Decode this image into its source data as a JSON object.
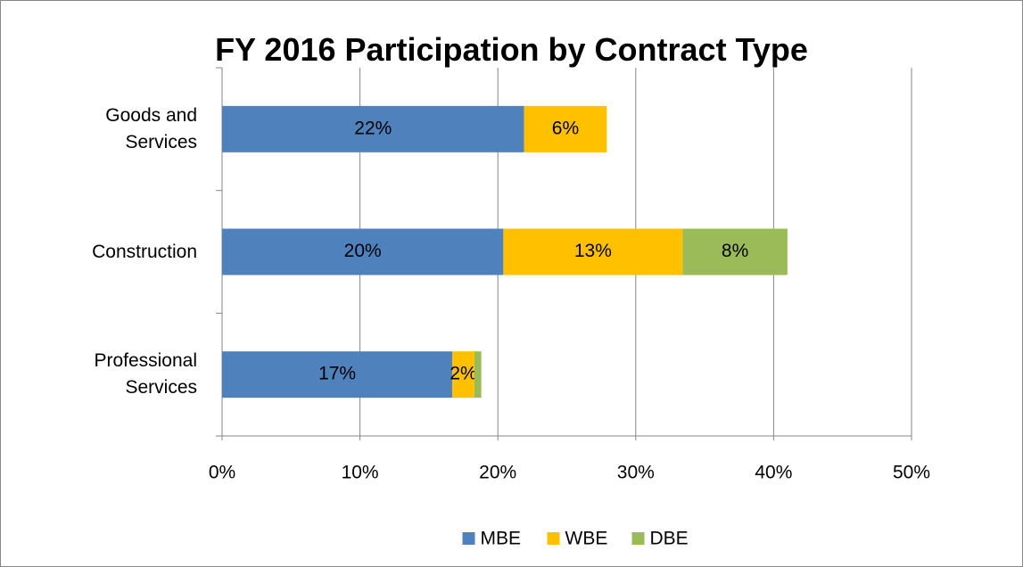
{
  "chart_data": {
    "type": "bar",
    "orientation": "horizontal",
    "stacked": true,
    "title": "FY 2016 Participation by Contract Type",
    "categories": [
      "Goods and Services",
      "Construction",
      "Professional Services"
    ],
    "series": [
      {
        "name": "MBE",
        "color": "#4f81bd",
        "values": [
          21.9,
          20.4,
          16.7
        ],
        "value_labels": [
          "22%",
          "20%",
          "17%"
        ]
      },
      {
        "name": "WBE",
        "color": "#ffc000",
        "values": [
          6.0,
          13.0,
          1.6
        ],
        "value_labels": [
          "6%",
          "13%",
          "2%"
        ]
      },
      {
        "name": "DBE",
        "color": "#9bbb59",
        "values": [
          null,
          7.6,
          0.5
        ],
        "value_labels": [
          null,
          "8%",
          null
        ]
      }
    ],
    "xlim": [
      0,
      50
    ],
    "xticks": [
      {
        "value": 0,
        "label": "0%"
      },
      {
        "value": 10,
        "label": "10%"
      },
      {
        "value": 20,
        "label": "20%"
      },
      {
        "value": 30,
        "label": "30%"
      },
      {
        "value": 40,
        "label": "40%"
      },
      {
        "value": 50,
        "label": "50%"
      }
    ],
    "grid": true,
    "legend": "bottom"
  }
}
